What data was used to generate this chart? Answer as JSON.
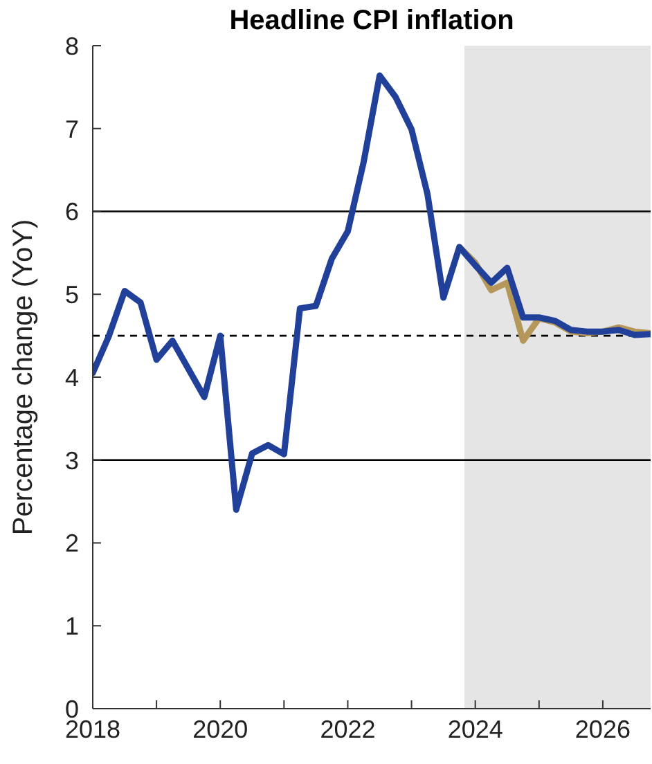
{
  "chart_data": {
    "type": "line",
    "title": "Headline CPI inflation",
    "ylabel": "Percentage change (YoY)",
    "xlim": [
      2018,
      2026.75
    ],
    "xticks": [
      2018,
      {
        "value": 2019,
        "label": null
      },
      2020,
      {
        "value": 2021,
        "label": null
      },
      2022,
      {
        "value": 2023,
        "label": null
      },
      2024,
      {
        "value": 2025,
        "label": null
      },
      2026
    ],
    "ylim": [
      0,
      8
    ],
    "yticks": [
      0,
      1,
      2,
      3,
      4,
      5,
      6,
      7,
      8
    ],
    "grid": false,
    "legend": false,
    "marker": "none",
    "line_style": "solid",
    "series": [
      {
        "color": "#b5975a",
        "x": [
          2023.75,
          2024,
          2024.25,
          2024.5,
          2024.75,
          2025,
          2025.25,
          2025.5,
          2025.75,
          2026,
          2026.25,
          2026.5,
          2026.75
        ],
        "values": [
          5.57,
          5.38,
          5.05,
          5.14,
          4.44,
          4.71,
          4.66,
          4.55,
          4.53,
          4.55,
          4.6,
          4.55,
          4.53
        ]
      },
      {
        "color": "#21409a",
        "x": [
          2018,
          2018.25,
          2018.5,
          2018.75,
          2019,
          2019.25,
          2019.5,
          2019.75,
          2020,
          2020.25,
          2020.5,
          2020.75,
          2021,
          2021.25,
          2021.5,
          2021.75,
          2022,
          2022.25,
          2022.5,
          2022.75,
          2023,
          2023.25,
          2023.5,
          2023.75,
          2024,
          2024.25,
          2024.5,
          2024.75,
          2025,
          2025.25,
          2025.5,
          2025.75,
          2026,
          2026.25,
          2026.5,
          2026.75
        ],
        "values": [
          4.05,
          4.49,
          5.04,
          4.9,
          4.21,
          4.44,
          4.1,
          3.76,
          4.5,
          2.4,
          3.08,
          3.18,
          3.07,
          4.83,
          4.86,
          5.43,
          5.76,
          6.6,
          7.64,
          7.38,
          6.99,
          6.21,
          4.96,
          5.57,
          5.35,
          5.14,
          5.32,
          4.72,
          4.72,
          4.68,
          4.57,
          4.55,
          4.55,
          4.57,
          4.51,
          4.52
        ]
      }
    ],
    "ref_lines": [
      {
        "axis": "y",
        "value": 6,
        "color": "#000000",
        "line_style": "solid"
      },
      {
        "axis": "y",
        "value": 3,
        "color": "#000000",
        "line_style": "solid"
      },
      {
        "axis": "y",
        "value": 4.5,
        "color": "#000000",
        "line_style": "dashed"
      }
    ],
    "bands": [
      {
        "axis": "x",
        "from": 2023.83,
        "to": 2026.75,
        "color": "#e5e5e5"
      }
    ]
  }
}
